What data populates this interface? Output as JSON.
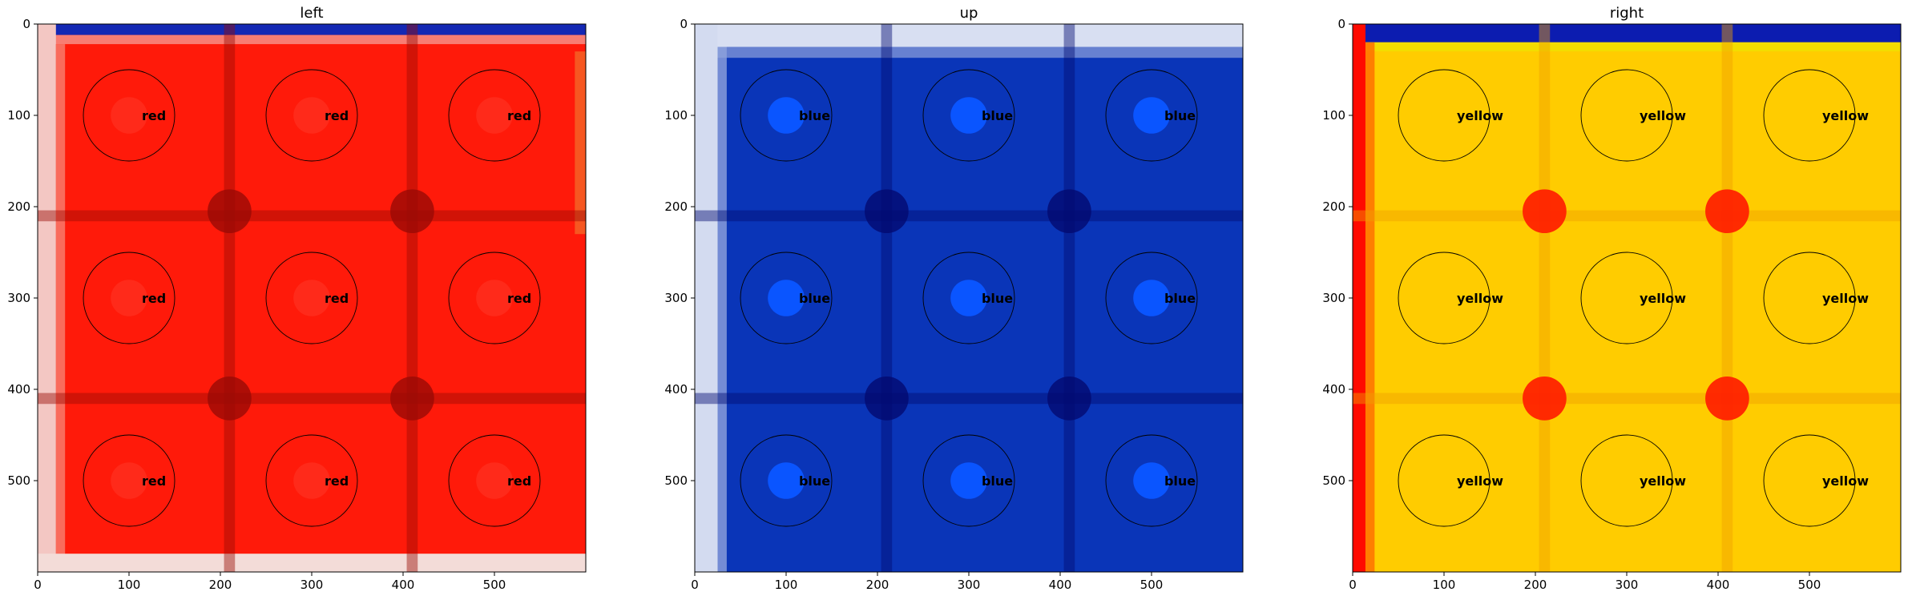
{
  "chart_data": [
    {
      "type": "heatmap",
      "title": "left",
      "xlim": [
        0,
        600
      ],
      "ylim": [
        600,
        0
      ],
      "xticks": [
        0,
        100,
        200,
        300,
        400,
        500
      ],
      "yticks": [
        0,
        100,
        200,
        300,
        400,
        500
      ],
      "grid": false,
      "colors": {
        "fill": "#ff1a0a",
        "top_band": "#1428b4",
        "edge": "#f3c7c3",
        "marker": "#ff2a1a",
        "seam": "#9a0a05"
      },
      "cells": [
        {
          "x": 100,
          "y": 100,
          "label": "red"
        },
        {
          "x": 300,
          "y": 100,
          "label": "red"
        },
        {
          "x": 500,
          "y": 100,
          "label": "red"
        },
        {
          "x": 100,
          "y": 300,
          "label": "red"
        },
        {
          "x": 300,
          "y": 300,
          "label": "red"
        },
        {
          "x": 500,
          "y": 300,
          "label": "red"
        },
        {
          "x": 100,
          "y": 500,
          "label": "red"
        },
        {
          "x": 300,
          "y": 500,
          "label": "red"
        },
        {
          "x": 500,
          "y": 500,
          "label": "red"
        }
      ]
    },
    {
      "type": "heatmap",
      "title": "up",
      "xlim": [
        0,
        600
      ],
      "ylim": [
        600,
        0
      ],
      "xticks": [
        0,
        100,
        200,
        300,
        400,
        500
      ],
      "yticks": [
        0,
        100,
        200,
        300,
        400,
        500
      ],
      "grid": false,
      "colors": {
        "fill": "#0a35b8",
        "top_band": "#d8dff2",
        "edge": "#d3dbf0",
        "marker": "#0a55ff",
        "seam": "#020a70"
      },
      "cells": [
        {
          "x": 100,
          "y": 100,
          "label": "blue"
        },
        {
          "x": 300,
          "y": 100,
          "label": "blue"
        },
        {
          "x": 500,
          "y": 100,
          "label": "blue"
        },
        {
          "x": 100,
          "y": 300,
          "label": "blue"
        },
        {
          "x": 300,
          "y": 300,
          "label": "blue"
        },
        {
          "x": 500,
          "y": 300,
          "label": "blue"
        },
        {
          "x": 100,
          "y": 500,
          "label": "blue"
        },
        {
          "x": 300,
          "y": 500,
          "label": "blue"
        },
        {
          "x": 500,
          "y": 500,
          "label": "blue"
        }
      ]
    },
    {
      "type": "heatmap",
      "title": "right",
      "xlim": [
        0,
        600
      ],
      "ylim": [
        600,
        0
      ],
      "xticks": [
        0,
        100,
        200,
        300,
        400,
        500
      ],
      "yticks": [
        0,
        100,
        200,
        300,
        400,
        500
      ],
      "grid": false,
      "colors": {
        "fill": "#ffcc00",
        "top_band": "#0c1cb0",
        "edge": "#ff0a00",
        "marker": "#ffcc00",
        "seam": "#f0a000"
      },
      "cells": [
        {
          "x": 100,
          "y": 100,
          "label": "yellow"
        },
        {
          "x": 300,
          "y": 100,
          "label": "yellow"
        },
        {
          "x": 500,
          "y": 100,
          "label": "yellow"
        },
        {
          "x": 100,
          "y": 300,
          "label": "yellow"
        },
        {
          "x": 300,
          "y": 300,
          "label": "yellow"
        },
        {
          "x": 500,
          "y": 300,
          "label": "yellow"
        },
        {
          "x": 100,
          "y": 500,
          "label": "yellow"
        },
        {
          "x": 300,
          "y": 500,
          "label": "yellow"
        },
        {
          "x": 500,
          "y": 500,
          "label": "yellow"
        }
      ]
    }
  ]
}
